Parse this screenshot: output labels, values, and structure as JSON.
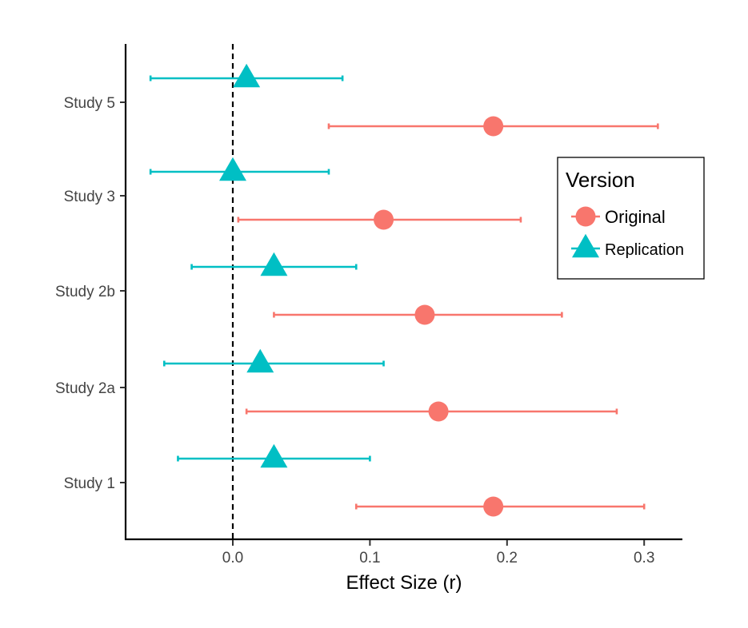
{
  "chart_data": {
    "type": "scatter",
    "subtype": "forest-plot",
    "title": "",
    "xlabel": "Effect Size (r)",
    "ylabel": "",
    "xlim": [
      -0.079,
      0.33
    ],
    "x_ticks": [
      0.0,
      0.1,
      0.2,
      0.3
    ],
    "x_tick_labels": [
      "0.0",
      "0.1",
      "0.2",
      "0.3"
    ],
    "reference_line": {
      "x": 0,
      "style": "dashed"
    },
    "categories": [
      "Study 5",
      "Study 3",
      "Study 2b",
      "Study 2a",
      "Study 1"
    ],
    "grid": false,
    "legend": {
      "title": "Version",
      "placement": "right"
    },
    "series": [
      {
        "name": "Original",
        "marker": "circle",
        "color": "#F8766D",
        "points": [
          {
            "study": "Study 5",
            "estimate": 0.19,
            "lower": 0.07,
            "upper": 0.31
          },
          {
            "study": "Study 3",
            "estimate": 0.11,
            "lower": 0.004,
            "upper": 0.21
          },
          {
            "study": "Study 2b",
            "estimate": 0.14,
            "lower": 0.03,
            "upper": 0.24
          },
          {
            "study": "Study 2a",
            "estimate": 0.15,
            "lower": 0.01,
            "upper": 0.28
          },
          {
            "study": "Study 1",
            "estimate": 0.19,
            "lower": 0.09,
            "upper": 0.3
          }
        ]
      },
      {
        "name": "Replication",
        "marker": "triangle",
        "color": "#00BFC4",
        "points": [
          {
            "study": "Study 5",
            "estimate": 0.01,
            "lower": -0.06,
            "upper": 0.08
          },
          {
            "study": "Study 3",
            "estimate": 0.0,
            "lower": -0.06,
            "upper": 0.07
          },
          {
            "study": "Study 2b",
            "estimate": 0.03,
            "lower": -0.03,
            "upper": 0.09
          },
          {
            "study": "Study 2a",
            "estimate": 0.02,
            "lower": -0.05,
            "upper": 0.11
          },
          {
            "study": "Study 1",
            "estimate": 0.03,
            "lower": -0.04,
            "upper": 0.1
          }
        ]
      }
    ]
  }
}
